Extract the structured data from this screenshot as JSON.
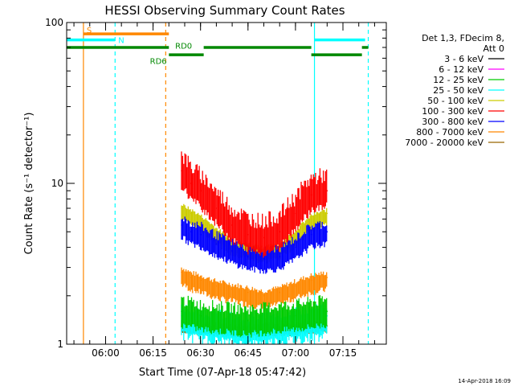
{
  "chart_data": {
    "type": "line",
    "title": "HESSI Observing Summary Count Rates",
    "xlabel": "Start Time (07-Apr-18 05:47:42)",
    "ylabel": "Count Rate (s⁻¹ detector⁻¹)",
    "yscale": "log",
    "ylim": [
      1,
      100
    ],
    "xlim_minutes_since_start": [
      0,
      101
    ],
    "y_ticks": [
      {
        "value": 1,
        "label": "1"
      },
      {
        "value": 10,
        "label": "10"
      },
      {
        "value": 100,
        "label": "100"
      }
    ],
    "x_ticks": [
      {
        "value": "06:00",
        "label": "06:00"
      },
      {
        "value": "06:15",
        "label": "06:15"
      },
      {
        "value": "06:30",
        "label": "06:30"
      },
      {
        "value": "06:45",
        "label": "06:45"
      },
      {
        "value": "07:00",
        "label": "07:00"
      },
      {
        "value": "07:15",
        "label": "07:15"
      }
    ],
    "legend": {
      "placement": "right",
      "header": [
        "Det 1,3, FDecim 8,",
        "Att 0"
      ],
      "entries": [
        {
          "label": "3 - 6 keV",
          "color": "#000000"
        },
        {
          "label": "6 - 12 keV",
          "color": "#ff00ff"
        },
        {
          "label": "12 - 25 keV",
          "color": "#00cc00"
        },
        {
          "label": "25 - 50 keV",
          "color": "#00ffff"
        },
        {
          "label": "50 - 100 keV",
          "color": "#cccc00"
        },
        {
          "label": "100 - 300 keV",
          "color": "#ff0000"
        },
        {
          "label": "300 - 800 keV",
          "color": "#0000ff"
        },
        {
          "label": "800 - 7000 keV",
          "color": "#ff8800"
        },
        {
          "label": "7000 - 20000 keV",
          "color": "#996600"
        }
      ]
    },
    "series": [
      {
        "name": "100 - 300 keV",
        "color": "#ff0000",
        "x": [
          "06:24",
          "06:27",
          "06:30",
          "06:35",
          "06:40",
          "06:45",
          "06:50",
          "06:55",
          "07:00",
          "07:05",
          "07:10"
        ],
        "y": [
          12,
          10,
          9,
          7,
          5.5,
          4.8,
          4.6,
          5,
          6.5,
          8.5,
          9
        ]
      },
      {
        "name": "50 - 100 keV",
        "color": "#cccc00",
        "x": [
          "06:24",
          "06:27",
          "06:30",
          "06:35",
          "06:40",
          "06:45",
          "06:50",
          "06:55",
          "07:00",
          "07:05",
          "07:10"
        ],
        "y": [
          7,
          6.5,
          6,
          5,
          4.2,
          4,
          3.8,
          4,
          4.8,
          6,
          6.5
        ]
      },
      {
        "name": "300 - 800 keV",
        "color": "#0000ff",
        "x": [
          "06:24",
          "06:27",
          "06:30",
          "06:35",
          "06:40",
          "06:45",
          "06:50",
          "06:55",
          "07:00",
          "07:05",
          "07:10"
        ],
        "y": [
          5.5,
          5,
          4.8,
          4.2,
          3.8,
          3.5,
          3.4,
          3.5,
          4,
          4.8,
          5
        ]
      },
      {
        "name": "800 - 7000 keV",
        "color": "#ff8800",
        "x": [
          "06:24",
          "06:27",
          "06:30",
          "06:35",
          "06:40",
          "06:45",
          "06:50",
          "06:55",
          "07:00",
          "07:05",
          "07:10"
        ],
        "y": [
          2.8,
          2.6,
          2.5,
          2.3,
          2.2,
          2.1,
          2,
          2.1,
          2.3,
          2.5,
          2.6
        ]
      },
      {
        "name": "25 - 50 keV",
        "color": "#00ffff",
        "x": [
          "06:24",
          "06:30",
          "06:45",
          "07:00",
          "07:10"
        ],
        "y": [
          1.5,
          1.4,
          1.3,
          1.4,
          1.5
        ]
      },
      {
        "name": "12 - 25 keV",
        "color": "#00cc00",
        "x": [
          "06:24",
          "06:30",
          "06:45",
          "07:00",
          "07:10"
        ],
        "y": [
          1.6,
          1.5,
          1.4,
          1.5,
          1.6
        ]
      },
      {
        "name": "7000 - 20000 keV",
        "color": "#996600",
        "x": [
          "06:24",
          "06:30",
          "06:45",
          "07:00",
          "07:10"
        ],
        "y": [
          1.3,
          1.25,
          1.2,
          1.25,
          1.3
        ]
      }
    ],
    "flag_bars": [
      {
        "label": "S",
        "color": "#ff8800",
        "start": "05:53",
        "end": "06:20",
        "y": 85
      },
      {
        "label": "N",
        "color": "#00ffff",
        "start": "05:47:42",
        "end": "06:03",
        "y": 78
      },
      {
        "label": "N",
        "color": "#00ffff",
        "start": "07:06",
        "end": "07:22",
        "y": 78
      },
      {
        "label": "RD0",
        "color": "#008800",
        "start": "05:47:42",
        "end": "06:20",
        "y": 70
      },
      {
        "label": "RD0",
        "color": "#008800",
        "start": "06:31",
        "end": "07:05",
        "y": 70
      },
      {
        "label": "RD6",
        "color": "#008800",
        "start": "06:20",
        "end": "06:31",
        "y": 63
      },
      {
        "label": "RD6",
        "color": "#008800",
        "start": "07:05",
        "end": "07:21",
        "y": 63
      },
      {
        "label": "RD0",
        "color": "#008800",
        "start": "07:21",
        "end": "07:23",
        "y": 70
      }
    ],
    "flag_labels": [
      {
        "text": "S",
        "color": "#ff8800",
        "x": "05:54",
        "y": 90
      },
      {
        "text": "N",
        "color": "#00ffff",
        "x": "06:04",
        "y": 78
      },
      {
        "text": "RD0",
        "color": "#008800",
        "x": "06:22",
        "y": 72
      },
      {
        "text": "RD6",
        "color": "#008800",
        "x": "06:14",
        "y": 58
      }
    ],
    "vertical_lines": [
      {
        "x": "05:53",
        "color": "#ff8800",
        "style": "solid"
      },
      {
        "x": "06:03",
        "color": "#00ffff",
        "style": "dashed"
      },
      {
        "x": "06:19",
        "color": "#ff8800",
        "style": "dashed"
      },
      {
        "x": "07:06",
        "color": "#00ffff",
        "style": "solid"
      },
      {
        "x": "07:23",
        "color": "#00ffff",
        "style": "dashed"
      }
    ],
    "footer_text": "14-Apr-2018 16:09"
  }
}
